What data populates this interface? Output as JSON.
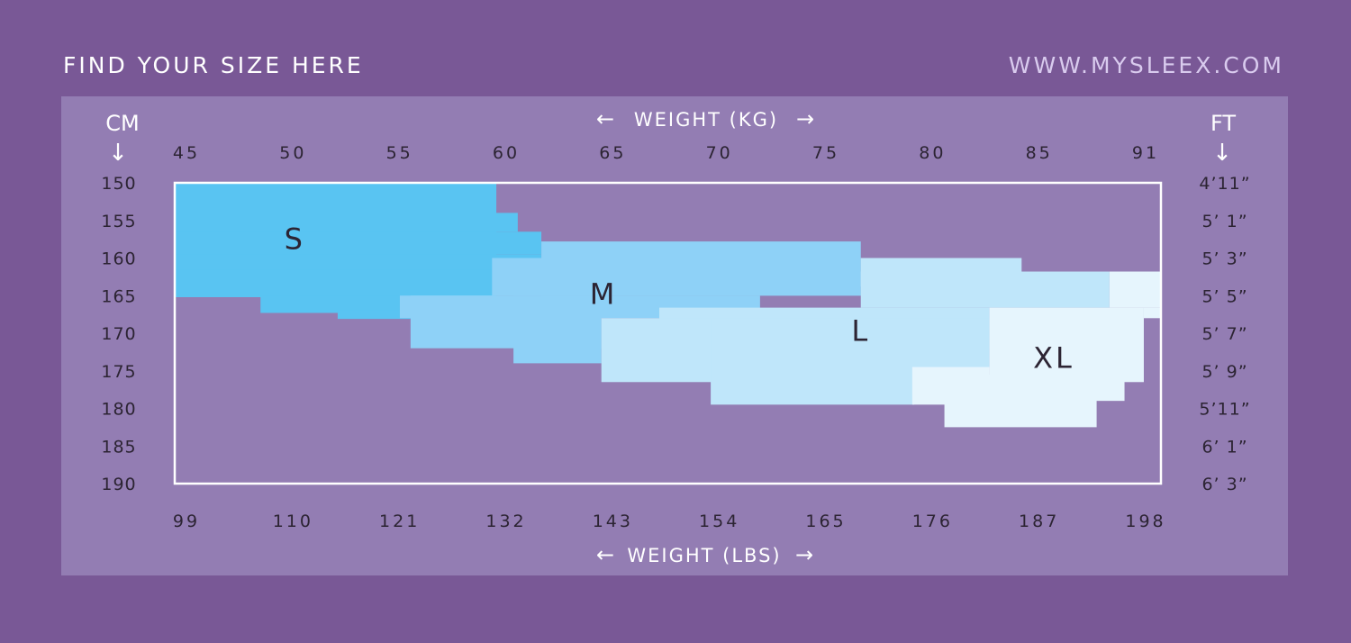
{
  "header": {
    "title": "FIND YOUR SIZE HERE",
    "url": "WWW.MYSLEEX.COM"
  },
  "colors": {
    "background": "#795896",
    "panel": "#937db3",
    "S": "#59c4f2",
    "M": "#8ed1f7",
    "L": "#bfe6fa",
    "XL": "#e6f5fd"
  },
  "chart_data": {
    "type": "heatmap",
    "title": "",
    "x_axis_top": {
      "label": "WEIGHT (KG)",
      "arrow_left": "←",
      "arrow_right": "→",
      "ticks": [
        "45",
        "50",
        "55",
        "60",
        "65",
        "70",
        "75",
        "80",
        "85",
        "91"
      ],
      "range": [
        45,
        91
      ]
    },
    "x_axis_bottom": {
      "label": "WEIGHT (LBS)",
      "arrow_left": "←",
      "arrow_right": "→",
      "ticks": [
        "99",
        "110",
        "121",
        "132",
        "143",
        "154",
        "165",
        "176",
        "187",
        "198"
      ]
    },
    "y_axis_left": {
      "label": "CM",
      "arrow": "↓",
      "ticks": [
        "150",
        "155",
        "160",
        "165",
        "170",
        "175",
        "180",
        "185",
        "190"
      ],
      "range": [
        150,
        190
      ]
    },
    "y_axis_right": {
      "label": "FT",
      "arrow": "↓",
      "ticks": [
        "4’11”",
        "5’ 1”",
        "5’ 3”",
        "5’ 5”",
        "5’ 7”",
        "5’ 9”",
        "5’11”",
        "6’ 1”",
        "6’ 3”"
      ]
    },
    "regions": [
      {
        "size": "S",
        "label": "S",
        "label_at": [
          50.6,
          157.5
        ],
        "rects": [
          [
            45.0,
            60.0,
            150.0,
            165.2
          ],
          [
            45.0,
            61.0,
            154.0,
            156.5
          ],
          [
            45.0,
            62.1,
            156.5,
            159.5
          ],
          [
            45.0,
            62.1,
            159.5,
            161.5
          ],
          [
            45.0,
            59.8,
            161.5,
            165.2
          ],
          [
            49.0,
            56.0,
            165.0,
            167.3
          ],
          [
            52.6,
            56.0,
            167.0,
            168.1
          ]
        ]
      },
      {
        "size": "M",
        "label": "M",
        "label_at": [
          65.0,
          164.8
        ],
        "rects": [
          [
            62.1,
            77.0,
            157.8,
            165.0
          ],
          [
            59.8,
            77.0,
            160.0,
            165.0
          ],
          [
            55.5,
            72.3,
            165.0,
            168.0
          ],
          [
            56.0,
            64.9,
            165.0,
            172.0
          ],
          [
            60.8,
            64.9,
            165.0,
            174.0
          ]
        ]
      },
      {
        "size": "L",
        "label": "L",
        "label_at": [
          77.0,
          169.7
        ],
        "rects": [
          [
            77.0,
            84.5,
            160.0,
            163.8
          ],
          [
            77.0,
            88.6,
            161.8,
            166.6
          ],
          [
            67.6,
            83.0,
            166.6,
            172.0
          ],
          [
            64.9,
            83.0,
            168.0,
            176.5
          ],
          [
            70.0,
            79.5,
            168.0,
            179.5
          ]
        ]
      },
      {
        "size": "XL",
        "label": "XL",
        "label_at": [
          86.0,
          173.3
        ],
        "rects": [
          [
            88.6,
            91.0,
            161.8,
            166.6
          ],
          [
            83.0,
            90.2,
            166.6,
            176.5
          ],
          [
            80.9,
            89.3,
            175.5,
            179.0
          ],
          [
            79.4,
            83.0,
            174.5,
            179.5
          ],
          [
            80.9,
            88.0,
            176.5,
            182.5
          ],
          [
            90.2,
            91.0,
            166.6,
            168.0
          ]
        ]
      }
    ]
  }
}
